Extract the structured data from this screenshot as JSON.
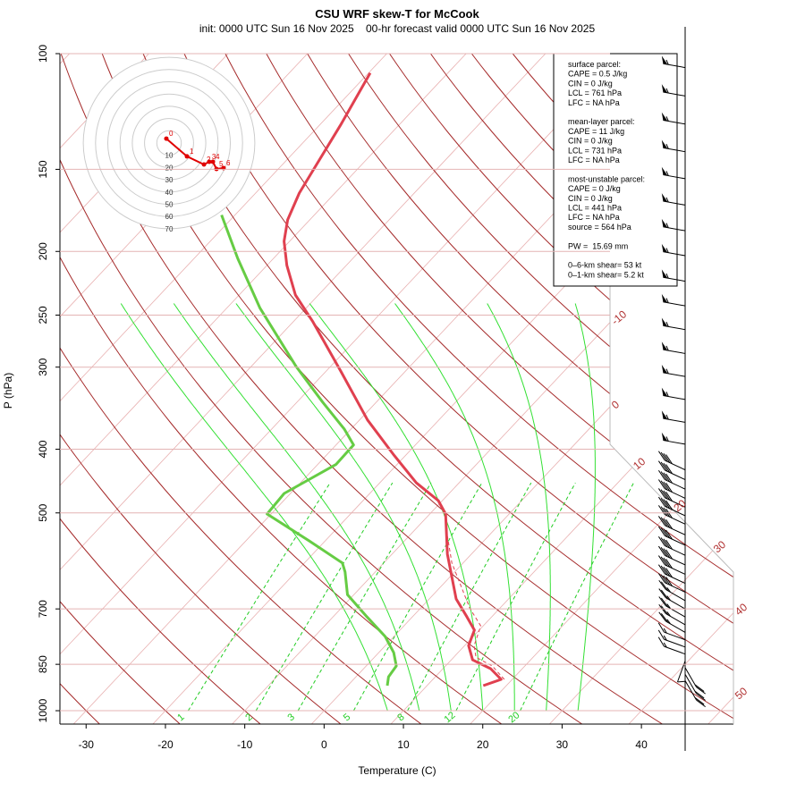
{
  "chart_data": {
    "type": "skewt",
    "title": "CSU WRF skew-T for McCook",
    "subtitle": "init: 0000 UTC Sun 16 Nov 2025    00-hr forecast valid 0000 UTC Sun 16 Nov 2025",
    "x_label": "Temperature (C)",
    "y_label": "P (hPa)",
    "log_y": true,
    "ylim": [
      1048,
      100
    ],
    "yticks": [
      1000,
      850,
      700,
      500,
      400,
      300,
      250,
      200,
      150,
      100
    ],
    "xlim": [
      -33.3,
      51.6
    ],
    "xticks": [
      -30,
      -20,
      -10,
      0,
      10,
      20,
      30,
      40
    ],
    "isotherms": {
      "values": [
        -110,
        -100,
        -90,
        -80,
        -70,
        -60,
        -50,
        -40,
        -30,
        -20,
        -10,
        0,
        10,
        20,
        30,
        40,
        50
      ],
      "labels": [
        -10,
        0,
        10,
        20,
        30,
        40,
        50
      ],
      "color": "#e8b0b0",
      "label_color": "#b03030"
    },
    "dry_adiabats": {
      "values": [
        -30,
        -20,
        -10,
        0,
        10,
        20,
        30,
        40,
        50,
        60,
        70,
        80,
        90,
        100,
        110,
        120,
        130,
        140,
        150,
        160,
        170,
        180,
        190,
        200
      ],
      "color": "#a52a2a"
    },
    "moist_adiabats": {
      "values": [
        8,
        12,
        16,
        20,
        24,
        28,
        32
      ],
      "color": "#33e033"
    },
    "mixing_ratios": {
      "values": [
        1,
        2,
        3,
        5,
        8,
        12,
        20
      ],
      "color": "#22cc22"
    },
    "temperature": {
      "color": "#e0404f",
      "pressure": [
        916,
        896,
        863,
        837,
        796,
        754,
        720,
        676,
        578,
        502,
        479,
        450,
        409,
        361,
        304,
        256,
        233,
        210,
        193,
        179,
        163,
        150,
        128,
        107
      ],
      "values": [
        17.1,
        18.6,
        16.0,
        12.7,
        10.5,
        9.4,
        6.9,
        3.4,
        -3.0,
        -8.0,
        -10.5,
        -15.4,
        -21.4,
        -29.0,
        -38.2,
        -47.5,
        -52.9,
        -57.5,
        -60.7,
        -62.8,
        -64.5,
        -65.5,
        -67.4,
        -69.8
      ]
    },
    "virtual_temperature": {
      "color": "#e0404f",
      "pressure": [
        896,
        855,
        829,
        796,
        743,
        698,
        596,
        543
      ],
      "values": [
        19.0,
        15.9,
        12.8,
        11.2,
        9.7,
        6.2,
        -1.4,
        -5.1
      ]
    },
    "dewpoint": {
      "color": "#66cc44",
      "pressure": [
        916,
        888,
        855,
        816,
        771,
        720,
        666,
        615,
        596,
        551,
        502,
        467,
        422,
        394,
        373,
        339,
        299,
        244,
        205,
        176
      ],
      "values": [
        5.0,
        4.1,
        3.8,
        1.9,
        -1.1,
        -5.7,
        -10.8,
        -13.8,
        -15.2,
        -22.1,
        -30.5,
        -30.8,
        -27.7,
        -27.8,
        -30.8,
        -36.8,
        -44.4,
        -55.8,
        -64.5,
        -71.7
      ]
    },
    "wind_barbs": {
      "pressure": [
        105,
        116,
        128,
        141,
        155,
        170,
        186,
        203,
        222,
        242,
        263,
        286,
        310,
        336,
        364,
        393,
        430,
        445,
        460,
        475,
        490,
        505,
        520,
        540,
        560,
        580,
        600,
        620,
        640,
        660,
        680,
        700,
        720,
        740,
        760,
        780,
        800,
        820,
        840,
        860,
        880,
        900
      ],
      "speed": [
        55,
        55,
        55,
        55,
        55,
        55,
        55,
        55,
        55,
        55,
        55,
        55,
        55,
        55,
        55,
        55,
        40,
        40,
        40,
        40,
        40,
        40,
        40,
        40,
        40,
        40,
        40,
        40,
        40,
        40,
        25,
        25,
        25,
        25,
        25,
        15,
        15,
        15,
        10,
        20,
        20,
        20
      ],
      "direction": [
        280,
        280,
        280,
        280,
        280,
        280,
        280,
        280,
        280,
        280,
        280,
        280,
        280,
        280,
        280,
        280,
        295,
        295,
        295,
        295,
        295,
        295,
        295,
        295,
        295,
        295,
        295,
        295,
        295,
        295,
        300,
        300,
        300,
        300,
        300,
        290,
        290,
        290,
        200,
        150,
        150,
        150
      ]
    },
    "hodograph": {
      "rings": [
        10,
        20,
        30,
        40,
        50,
        60,
        70
      ],
      "color": "#e00000",
      "u": [
        -2.2,
        14.6,
        28.5,
        32.8,
        35.8,
        38.7,
        44.5
      ],
      "v": [
        3.6,
        -10.9,
        -17.5,
        -15.3,
        -15.3,
        -21.2,
        -20.4
      ],
      "labels": [
        "0",
        "1",
        "2",
        "3",
        "4",
        "5",
        "6"
      ]
    },
    "info": [
      [
        "surface parcel:",
        "CAPE = 0.5 J/kg",
        "CIN = 0 J/kg",
        "LCL = 761 hPa",
        "LFC = NA hPa"
      ],
      [
        "mean-layer parcel:",
        "CAPE = 11 J/kg",
        "CIN = 0 J/kg",
        "LCL = 731 hPa",
        "LFC = NA hPa"
      ],
      [
        "most-unstable parcel:",
        "CAPE = 0 J/kg",
        "CIN = 0 J/kg",
        "LCL = 441 hPa",
        "LFC = NA hPa",
        "source = 564 hPa"
      ],
      [
        "PW =  15.69 mm"
      ],
      [
        "0–6-km shear= 53 kt",
        "0–1-km shear= 5.2 kt"
      ]
    ]
  }
}
